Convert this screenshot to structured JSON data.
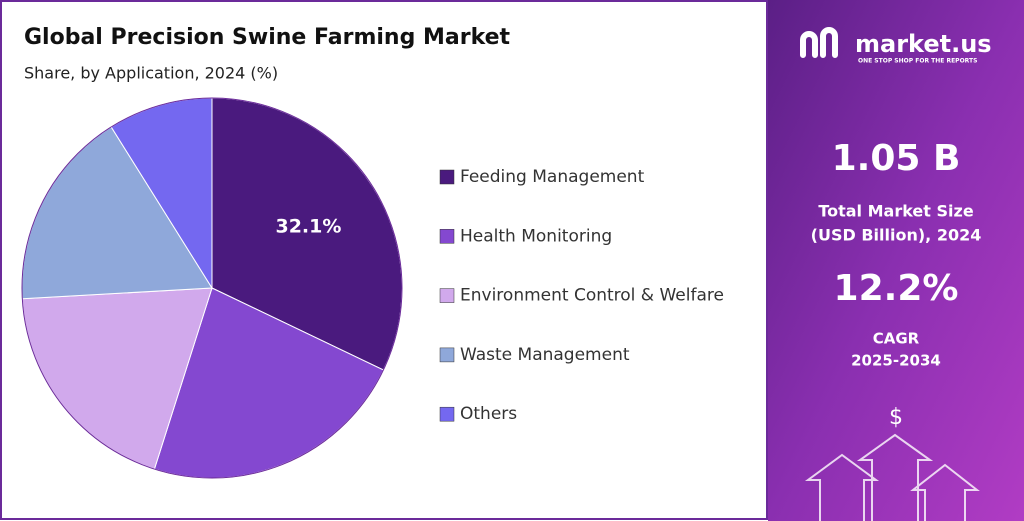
{
  "chart_data": {
    "type": "pie",
    "title": "Global Precision Swine Farming Market",
    "subtitle": "Share, by Application, 2024 (%)",
    "categories": [
      "Feeding Management",
      "Health Monitoring",
      "Environment Control & Welfare",
      "Waste Management",
      "Others"
    ],
    "values": [
      32.1,
      22.8,
      19.2,
      17.0,
      8.9
    ],
    "value_labels": [
      "32.1%",
      null,
      null,
      null,
      null
    ],
    "colors": [
      "#4a1a7e",
      "#8448d0",
      "#d1a9ec",
      "#8fa8da",
      "#7468f0"
    ],
    "legend": "right"
  },
  "sidebar": {
    "brand": "market.us",
    "tagline": "ONE STOP SHOP FOR THE REPORTS",
    "market_size": "1.05 B",
    "market_size_label": [
      "Total Market Size",
      "(USD Billion), 2024"
    ],
    "cagr": "12.2%",
    "cagr_label": [
      "CAGR",
      "2025-2034"
    ],
    "icon": "$"
  }
}
